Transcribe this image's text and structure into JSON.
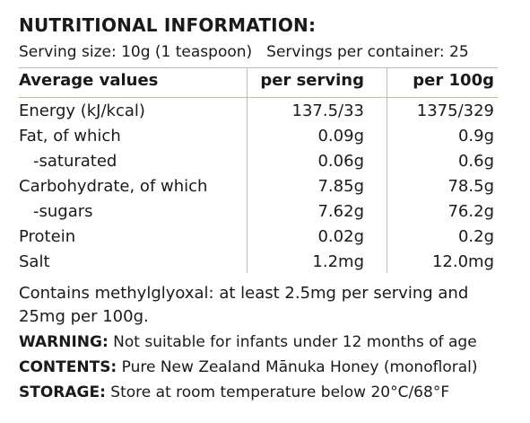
{
  "label": {
    "title": "NUTRITIONAL INFORMATION:",
    "serving_size": "Serving size: 10g (1 teaspoon)",
    "servings_per_container": "Servings per container: 25",
    "headers": {
      "name": "Average values",
      "per_serving": "per serving",
      "per_100g": "per 100g"
    },
    "rows": [
      {
        "name": "Energy (kJ/kcal)",
        "per_serving": "137.5/33",
        "per_100g": "1375/329",
        "indent": false
      },
      {
        "name": "Fat, of which",
        "per_serving": "0.09g",
        "per_100g": "0.9g",
        "indent": false
      },
      {
        "name": "-saturated",
        "per_serving": "0.06g",
        "per_100g": "0.6g",
        "indent": true
      },
      {
        "name": "Carbohydrate, of which",
        "per_serving": "7.85g",
        "per_100g": "78.5g",
        "indent": false
      },
      {
        "name": "-sugars",
        "per_serving": "7.62g",
        "per_100g": "76.2g",
        "indent": true
      },
      {
        "name": "Protein",
        "per_serving": "0.02g",
        "per_100g": "0.2g",
        "indent": false
      },
      {
        "name": "Salt",
        "per_serving": "1.2mg",
        "per_100g": "12.0mg",
        "indent": false
      }
    ],
    "note": "Contains methylglyoxal: at least 2.5mg per serving and 25mg per 100g.",
    "warning_label": "WARNING:",
    "warning_text": " Not suitable for infants under 12 months of age",
    "contents_label": "CONTENTS:",
    "contents_text": " Pure New Zealand Mānuka Honey (monofloral)",
    "storage_label": "STORAGE:",
    "storage_text": " Store at room temperature below 20°C/68°F"
  }
}
